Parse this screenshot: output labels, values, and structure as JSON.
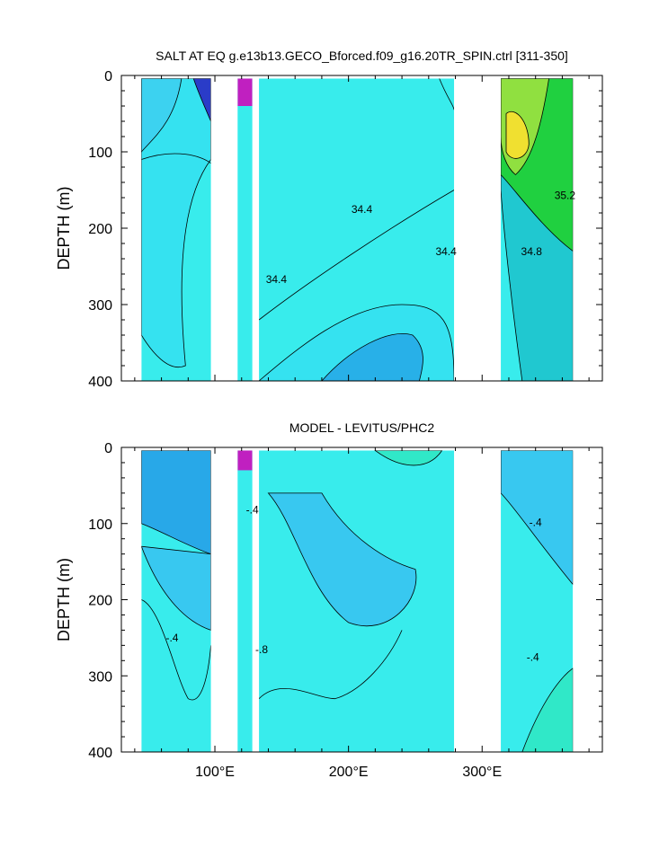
{
  "chart_data": [
    {
      "type": "heatmap",
      "title": "SALT AT EQ g.e13b13.GECO_Bforced.f09_g16.20TR_SPIN.ctrl [311-350]",
      "ylabel": "DEPTH (m)",
      "xlabel": "",
      "xlim": [
        30,
        390
      ],
      "ylim": [
        400,
        0
      ],
      "y_reversed": true,
      "y_ticks": [
        0,
        100,
        200,
        300,
        400
      ],
      "x_ticks": [
        100,
        200,
        300
      ],
      "x_tick_labels": [
        "100°E",
        "200°E",
        "300°E"
      ],
      "show_x_tick_labels": false,
      "grid": false,
      "land_gaps_lon": [
        [
          97,
          117
        ],
        [
          128,
          133
        ],
        [
          279,
          314
        ],
        [
          368,
          390
        ]
      ],
      "colors": {
        "low": "#2a3cc8",
        "mid": "#35e2f0",
        "base": "#38ecec",
        "high": "#f0e030",
        "green": "#20d040",
        "magenta": "#c020c0"
      },
      "contour_labels": [
        {
          "text": "34.4",
          "lon": 210,
          "depth": 180
        },
        {
          "text": "34.4",
          "lon": 273,
          "depth": 235
        },
        {
          "text": "34.4",
          "lon": 146,
          "depth": 272
        },
        {
          "text": "34.8",
          "lon": 337,
          "depth": 235
        },
        {
          "text": "35.2",
          "lon": 362,
          "depth": 162
        }
      ]
    },
    {
      "type": "heatmap",
      "title": "MODEL - LEVITUS/PHC2",
      "ylabel": "DEPTH (m)",
      "xlabel": "",
      "xlim": [
        30,
        390
      ],
      "ylim": [
        400,
        0
      ],
      "y_reversed": true,
      "y_ticks": [
        0,
        100,
        200,
        300,
        400
      ],
      "x_ticks": [
        100,
        200,
        300
      ],
      "x_tick_labels": [
        "100°E",
        "200°E",
        "300°E"
      ],
      "show_x_tick_labels": true,
      "grid": false,
      "land_gaps_lon": [
        [
          97,
          117
        ],
        [
          128,
          133
        ],
        [
          279,
          314
        ],
        [
          368,
          390
        ]
      ],
      "colors": {
        "low": "#28a8e8",
        "mid": "#38c8f0",
        "base": "#38ecec",
        "high": "#30e8c8",
        "magenta": "#c020c0"
      },
      "contour_labels": [
        {
          "text": "-.4",
          "lon": 128,
          "depth": 87
        },
        {
          "text": "-.4",
          "lon": 340,
          "depth": 103
        },
        {
          "text": "-.4",
          "lon": 68,
          "depth": 255
        },
        {
          "text": "-.8",
          "lon": 135,
          "depth": 270
        },
        {
          "text": "-.4",
          "lon": 338,
          "depth": 280
        }
      ]
    }
  ]
}
